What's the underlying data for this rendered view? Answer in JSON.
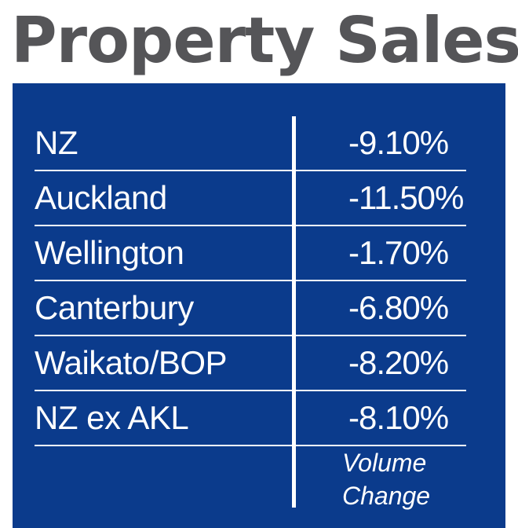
{
  "title": "Property Sales",
  "colors": {
    "panel": "#0b3b8c",
    "title": "#555558",
    "text": "#ffffff"
  },
  "chart_data": {
    "type": "table",
    "title": "Property Sales",
    "columns": [
      "",
      "Volume Change"
    ],
    "rows": [
      {
        "region": "NZ",
        "value": "-9.10%"
      },
      {
        "region": "Auckland",
        "value": "-11.50%"
      },
      {
        "region": "Wellington",
        "value": "-1.70%"
      },
      {
        "region": "Canterbury",
        "value": "-6.80%"
      },
      {
        "region": "Waikato/BOP",
        "value": "-8.20%"
      },
      {
        "region": "NZ ex AKL",
        "value": "-8.10%"
      }
    ],
    "footer": {
      "line1": "Volume",
      "line2": "Change"
    }
  }
}
